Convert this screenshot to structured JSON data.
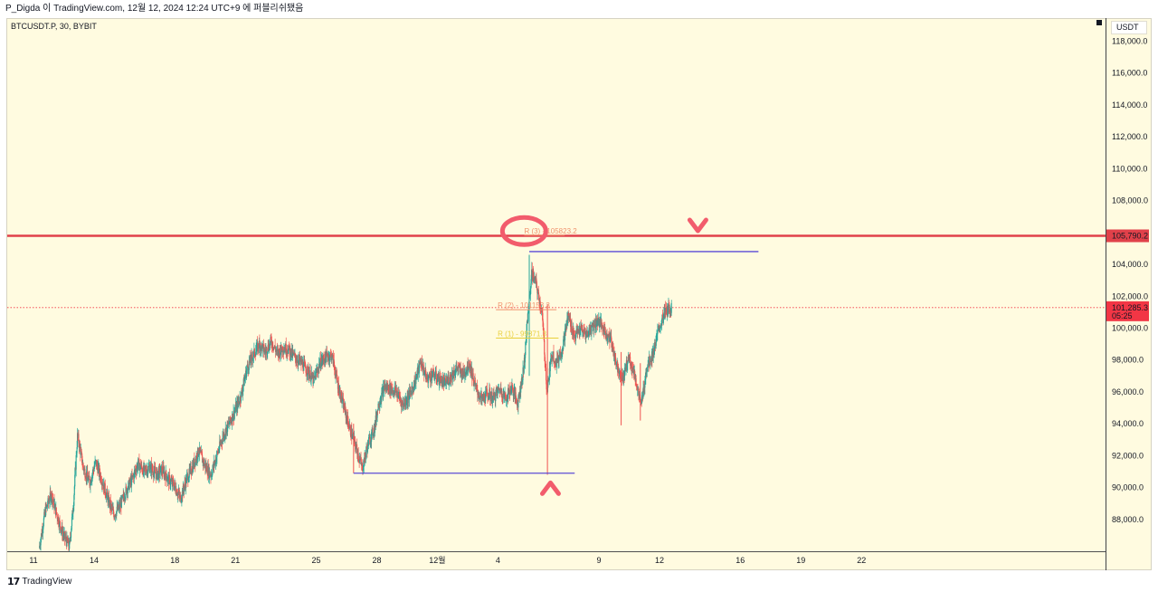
{
  "header": {
    "publisher_line": "P_Digda 이 TradingView.com, 12월 12, 2024 12:24 UTC+9 에 퍼블리쉬됐음",
    "symbol_line": "BTCUSDT.P, 30, BYBIT"
  },
  "footer": {
    "brand": "TradingView"
  },
  "price_axis": {
    "currency": "USDT"
  },
  "chart_data": {
    "type": "candlestick",
    "symbol": "BTCUSDT.P",
    "interval": "30",
    "exchange": "BYBIT",
    "ylim": [
      86000,
      119000
    ],
    "y_ticks": [
      88000,
      90000,
      92000,
      94000,
      96000,
      98000,
      100000,
      102000,
      104000,
      106000,
      108000,
      110000,
      112000,
      114000,
      116000,
      118000
    ],
    "y_tick_labels": [
      "88,000.0",
      "90,000.0",
      "92,000.0",
      "94,000.0",
      "96,000.0",
      "98,000.0",
      "100,000.0",
      "102,000.0",
      "104,000.0",
      "106,000.0",
      "108,000.0",
      "110,000.0",
      "112,000.0",
      "114,000.0",
      "116,000.0",
      "118,000.0"
    ],
    "xlim": [
      10.9,
      43.3
    ],
    "x_ticks": [
      {
        "day": 11,
        "label": "11"
      },
      {
        "day": 14,
        "label": "14"
      },
      {
        "day": 18,
        "label": "18"
      },
      {
        "day": 21,
        "label": "21"
      },
      {
        "day": 25,
        "label": "25"
      },
      {
        "day": 28,
        "label": "28"
      },
      {
        "day": 31,
        "label": "12월"
      },
      {
        "day": 34,
        "label": "4"
      },
      {
        "day": 39,
        "label": "9"
      },
      {
        "day": 42,
        "label": "12"
      },
      {
        "day": 46,
        "label": "16"
      },
      {
        "day": 49,
        "label": "19"
      },
      {
        "day": 52,
        "label": "22"
      }
    ],
    "price_path": [
      [
        11.3,
        86200
      ],
      [
        11.6,
        88500
      ],
      [
        11.9,
        89600
      ],
      [
        12.2,
        88200
      ],
      [
        12.5,
        87000
      ],
      [
        12.8,
        86300
      ],
      [
        13.0,
        89000
      ],
      [
        13.2,
        93300
      ],
      [
        13.5,
        91200
      ],
      [
        13.8,
        90300
      ],
      [
        14.1,
        91600
      ],
      [
        14.4,
        90500
      ],
      [
        14.7,
        89300
      ],
      [
        15.0,
        88300
      ],
      [
        15.3,
        88800
      ],
      [
        15.6,
        89800
      ],
      [
        15.9,
        90500
      ],
      [
        16.2,
        91500
      ],
      [
        16.5,
        91000
      ],
      [
        16.8,
        91300
      ],
      [
        17.1,
        90800
      ],
      [
        17.4,
        91100
      ],
      [
        17.7,
        90500
      ],
      [
        18.0,
        90100
      ],
      [
        18.3,
        89300
      ],
      [
        18.6,
        90500
      ],
      [
        18.9,
        91300
      ],
      [
        19.2,
        92300
      ],
      [
        19.5,
        91400
      ],
      [
        19.8,
        90800
      ],
      [
        20.1,
        92000
      ],
      [
        20.4,
        93200
      ],
      [
        20.7,
        94000
      ],
      [
        21.0,
        94800
      ],
      [
        21.3,
        95800
      ],
      [
        21.6,
        97500
      ],
      [
        21.9,
        98300
      ],
      [
        22.2,
        99000
      ],
      [
        22.5,
        98500
      ],
      [
        22.8,
        99200
      ],
      [
        23.1,
        98400
      ],
      [
        23.4,
        98800
      ],
      [
        23.7,
        98600
      ],
      [
        24.0,
        98100
      ],
      [
        24.3,
        97800
      ],
      [
        24.6,
        97300
      ],
      [
        24.9,
        96700
      ],
      [
        25.2,
        97800
      ],
      [
        25.5,
        98200
      ],
      [
        25.8,
        98300
      ],
      [
        26.1,
        96400
      ],
      [
        26.4,
        95000
      ],
      [
        26.7,
        93600
      ],
      [
        27.0,
        92500
      ],
      [
        27.3,
        91200
      ],
      [
        27.6,
        92800
      ],
      [
        27.9,
        93700
      ],
      [
        28.1,
        95200
      ],
      [
        28.4,
        96300
      ],
      [
        28.7,
        96200
      ],
      [
        29.0,
        96000
      ],
      [
        29.3,
        95200
      ],
      [
        29.6,
        95700
      ],
      [
        29.9,
        96600
      ],
      [
        30.2,
        97900
      ],
      [
        30.5,
        96800
      ],
      [
        30.8,
        97100
      ],
      [
        31.1,
        96800
      ],
      [
        31.4,
        96500
      ],
      [
        31.7,
        97000
      ],
      [
        32.0,
        97500
      ],
      [
        32.3,
        97100
      ],
      [
        32.6,
        97800
      ],
      [
        32.9,
        96300
      ],
      [
        33.2,
        95500
      ],
      [
        33.5,
        95900
      ],
      [
        33.8,
        95600
      ],
      [
        34.1,
        96200
      ],
      [
        34.4,
        95600
      ],
      [
        34.7,
        96300
      ],
      [
        35.0,
        95300
      ],
      [
        35.3,
        97500
      ],
      [
        35.5,
        100800
      ],
      [
        35.7,
        103500
      ],
      [
        35.9,
        102800
      ],
      [
        36.2,
        101000
      ],
      [
        36.45,
        96000
      ],
      [
        36.7,
        98500
      ],
      [
        36.9,
        97800
      ],
      [
        37.2,
        98700
      ],
      [
        37.5,
        100800
      ],
      [
        37.8,
        99500
      ],
      [
        38.1,
        99900
      ],
      [
        38.4,
        99600
      ],
      [
        38.7,
        100100
      ],
      [
        39.0,
        100500
      ],
      [
        39.3,
        99800
      ],
      [
        39.6,
        99300
      ],
      [
        39.9,
        97700
      ],
      [
        40.2,
        96800
      ],
      [
        40.5,
        98200
      ],
      [
        40.8,
        97000
      ],
      [
        41.1,
        95100
      ],
      [
        41.4,
        97600
      ],
      [
        41.7,
        98400
      ],
      [
        42.0,
        100000
      ],
      [
        42.3,
        101000
      ],
      [
        42.6,
        101300
      ]
    ],
    "wick_events": [
      {
        "day": 36.45,
        "low": 90800,
        "high": 101500
      },
      {
        "day": 35.55,
        "low": 97000,
        "high": 104600
      },
      {
        "day": 40.1,
        "low": 93900,
        "high": 98500
      },
      {
        "day": 41.05,
        "low": 94200,
        "high": 97800
      },
      {
        "day": 26.85,
        "low": 90900,
        "high": 94000
      }
    ],
    "horizontal_levels": [
      {
        "name": "resistance",
        "price": 105790.2,
        "color": "#e0414a",
        "label": "105,790.2"
      },
      {
        "name": "last-price",
        "price": 101285.3,
        "color": "#f23645",
        "label": "101,285.3",
        "sublabel": "05:25"
      }
    ],
    "range_lines": [
      {
        "name": "swing-high",
        "price": 104800,
        "from": 35.55,
        "to": 46.9,
        "color": "#5b4bd6"
      },
      {
        "name": "swing-low",
        "price": 90900,
        "from": 26.85,
        "to": 37.8,
        "color": "#5b4bd6"
      }
    ],
    "r_levels": [
      {
        "label": "R (3) - 105823.2",
        "price": 105823.2,
        "from": 35.3,
        "to": 37.3,
        "color": "#f0926d"
      },
      {
        "label": "R (2) - 101153.3",
        "price": 101153.3,
        "from": 33.9,
        "to": 36.9,
        "color": "#f0926d"
      },
      {
        "label": "R (1) - 99371.3",
        "price": 99371.3,
        "from": 33.9,
        "to": 37.0,
        "color": "#e8cf3a"
      }
    ],
    "annotations": [
      {
        "shape": "ellipse",
        "day": 34.4,
        "price": 106200,
        "color": "#f25c6c"
      },
      {
        "shape": "chevron-down",
        "day": 43.9,
        "price": 106500,
        "color": "#f25c6c"
      },
      {
        "shape": "chevron-up",
        "day": 36.6,
        "price": 89900,
        "color": "#f25c6c"
      }
    ],
    "colors": {
      "up": "#26a69a",
      "down": "#ef5350",
      "background": "#fffbe0"
    }
  }
}
